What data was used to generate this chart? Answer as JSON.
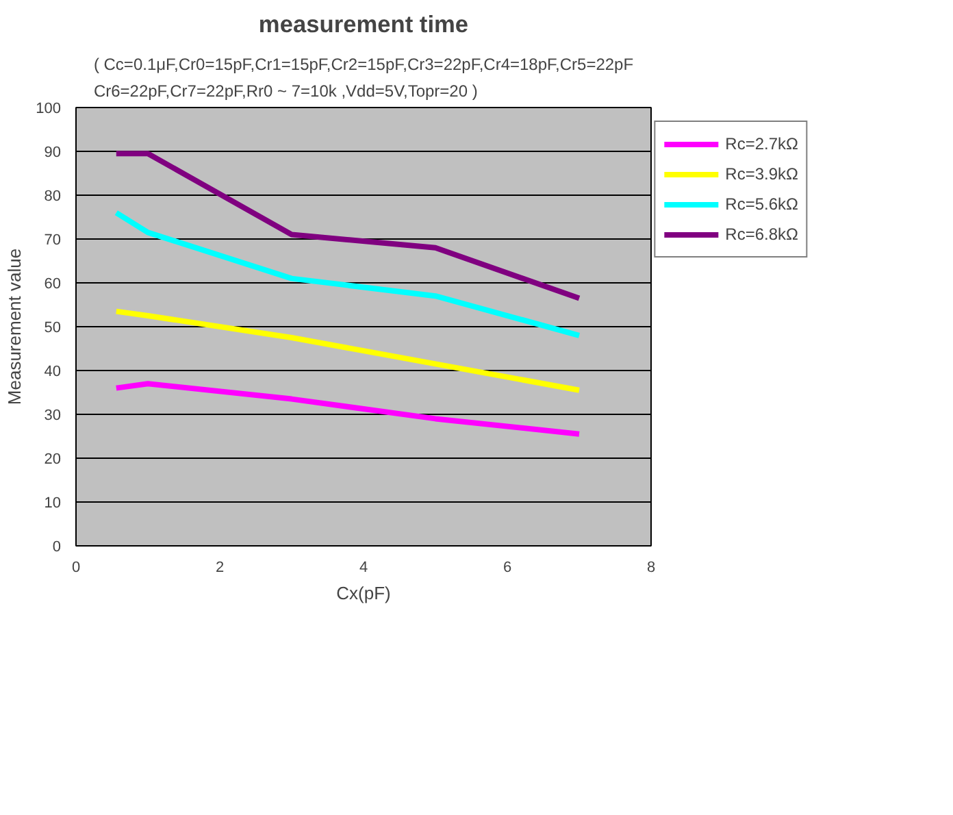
{
  "chart_data": {
    "type": "line",
    "title": "measurement time",
    "subtitle": "( Cc=0.1μF,Cr0=15pF,Cr1=15pF,Cr2=15pF,Cr3=22pF,Cr4=18pF,Cr5=22pF\nCr6=22pF,Cr7=22pF,Rr0 ~ 7=10k    ,Vdd=5V,Topr=20    )",
    "xlabel": "Cx(pF)",
    "ylabel": "Measurement value",
    "x": [
      0.56,
      1,
      3,
      5,
      7
    ],
    "series": [
      {
        "name": "Rc=2.7kΩ",
        "color": "#ff00ff",
        "values": [
          36,
          37,
          33.5,
          29,
          25.5
        ]
      },
      {
        "name": "Rc=3.9kΩ",
        "color": "#ffff00",
        "values": [
          53.5,
          52.5,
          47.5,
          41.5,
          35.5
        ]
      },
      {
        "name": "Rc=5.6kΩ",
        "color": "#00ffff",
        "values": [
          76,
          71.5,
          61,
          57,
          48
        ]
      },
      {
        "name": "Rc=6.8kΩ",
        "color": "#800080",
        "values": [
          89.5,
          89.5,
          71,
          68,
          56.5
        ]
      }
    ],
    "xlim": [
      0,
      8
    ],
    "xticks": [
      0,
      2,
      4,
      6,
      8
    ],
    "ylim": [
      0,
      100
    ],
    "yticks": [
      0,
      10,
      20,
      30,
      40,
      50,
      60,
      70,
      80,
      90,
      100
    ],
    "grid": "y",
    "legend": "right",
    "marker": "none",
    "line_style": "solid"
  }
}
